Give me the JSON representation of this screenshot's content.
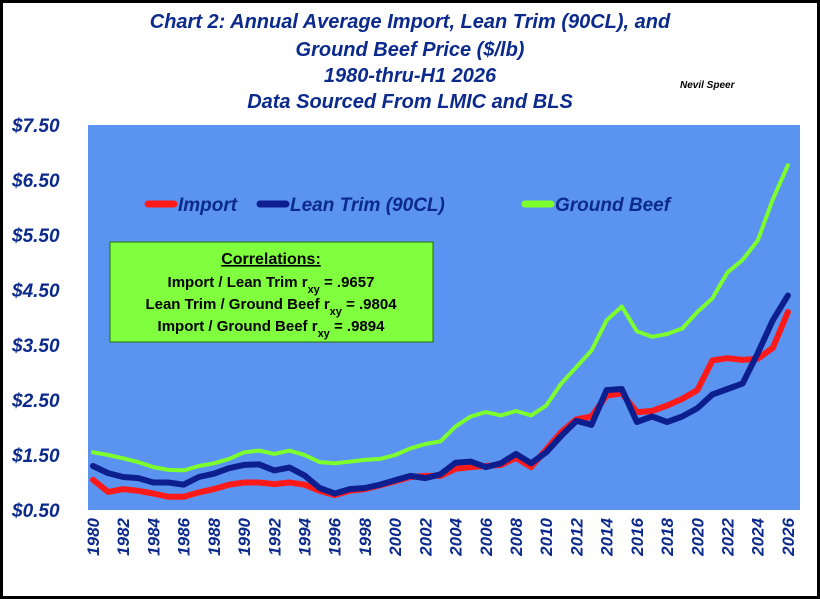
{
  "chart_data": {
    "type": "line",
    "title_lines": [
      "Chart 2:   Annual Average Import, Lean Trim (90CL), and",
      "Ground Beef Price ($/lb)",
      "1980-thru-H1 2026",
      "Data Sourced From LMIC and BLS"
    ],
    "author": "Nevil Speer",
    "xlabel": "",
    "ylabel": "",
    "ylim": [
      0.5,
      7.5
    ],
    "y_ticks": [
      "$7.50",
      "$6.50",
      "$5.50",
      "$4.50",
      "$3.50",
      "$2.50",
      "$1.50",
      "$0.50"
    ],
    "y_tick_values": [
      7.5,
      6.5,
      5.5,
      4.5,
      3.5,
      2.5,
      1.5,
      0.5
    ],
    "x_ticks": [
      "1980",
      "1982",
      "1984",
      "1986",
      "1988",
      "1990",
      "1992",
      "1994",
      "1996",
      "1998",
      "2000",
      "2002",
      "2004",
      "2006",
      "2008",
      "2010",
      "2012",
      "2014",
      "2016",
      "2018",
      "2020",
      "2022",
      "2024",
      "2026"
    ],
    "grid": false,
    "legend_position": "top",
    "x": [
      1980,
      1981,
      1982,
      1983,
      1984,
      1985,
      1986,
      1987,
      1988,
      1989,
      1990,
      1991,
      1992,
      1993,
      1994,
      1995,
      1996,
      1997,
      1998,
      1999,
      2000,
      2001,
      2002,
      2003,
      2004,
      2005,
      2006,
      2007,
      2008,
      2009,
      2010,
      2011,
      2012,
      2013,
      2014,
      2015,
      2016,
      2017,
      2018,
      2019,
      2020,
      2021,
      2022,
      2023,
      2024,
      2025,
      2026
    ],
    "series": [
      {
        "name": "Import",
        "color": "#ff1a1a",
        "values": [
          1.05,
          0.83,
          0.88,
          0.85,
          0.8,
          0.74,
          0.74,
          0.82,
          0.88,
          0.96,
          1.0,
          1.0,
          0.97,
          1.0,
          0.96,
          0.85,
          0.77,
          0.85,
          0.88,
          0.95,
          1.02,
          1.1,
          1.12,
          1.12,
          1.25,
          1.28,
          1.3,
          1.32,
          1.45,
          1.28,
          1.6,
          1.92,
          2.15,
          2.2,
          2.58,
          2.62,
          2.28,
          2.3,
          2.4,
          2.52,
          2.68,
          3.22,
          3.26,
          3.23,
          3.25,
          3.45,
          4.1
        ]
      },
      {
        "name": "Lean Trim (90CL)",
        "color": "#0d1f8f",
        "values": [
          1.3,
          1.17,
          1.1,
          1.08,
          1.0,
          1.0,
          0.96,
          1.1,
          1.16,
          1.26,
          1.32,
          1.33,
          1.22,
          1.27,
          1.13,
          0.9,
          0.8,
          0.88,
          0.9,
          0.96,
          1.04,
          1.12,
          1.08,
          1.15,
          1.36,
          1.38,
          1.28,
          1.35,
          1.52,
          1.35,
          1.55,
          1.85,
          2.12,
          2.05,
          2.68,
          2.7,
          2.1,
          2.2,
          2.1,
          2.2,
          2.35,
          2.6,
          2.7,
          2.8,
          3.35,
          3.95,
          4.4
        ]
      },
      {
        "name": "Ground Beef",
        "color": "#7dff2e",
        "values": [
          1.55,
          1.5,
          1.44,
          1.37,
          1.28,
          1.23,
          1.22,
          1.3,
          1.35,
          1.43,
          1.55,
          1.58,
          1.52,
          1.58,
          1.5,
          1.37,
          1.35,
          1.38,
          1.41,
          1.43,
          1.5,
          1.62,
          1.7,
          1.75,
          2.02,
          2.2,
          2.28,
          2.22,
          2.3,
          2.22,
          2.4,
          2.8,
          3.1,
          3.4,
          3.95,
          4.2,
          3.75,
          3.65,
          3.7,
          3.8,
          4.1,
          4.35,
          4.82,
          5.05,
          5.4,
          6.15,
          6.77
        ]
      }
    ]
  },
  "correlations": {
    "heading": "Correlations:",
    "lines": [
      {
        "prefix": "Import / Lean Trim r",
        "sub": "xy",
        "suffix": " = .9657"
      },
      {
        "prefix": "Lean Trim / Ground Beef r",
        "sub": "xy",
        "suffix": " = .9804"
      },
      {
        "prefix": "Import / Ground Beef r",
        "sub": "xy",
        "suffix": " = .9894"
      }
    ]
  },
  "colors": {
    "plot_background": "#5b93f0",
    "title": "#0b2a8c",
    "correlation_box": "#80ff3f"
  }
}
